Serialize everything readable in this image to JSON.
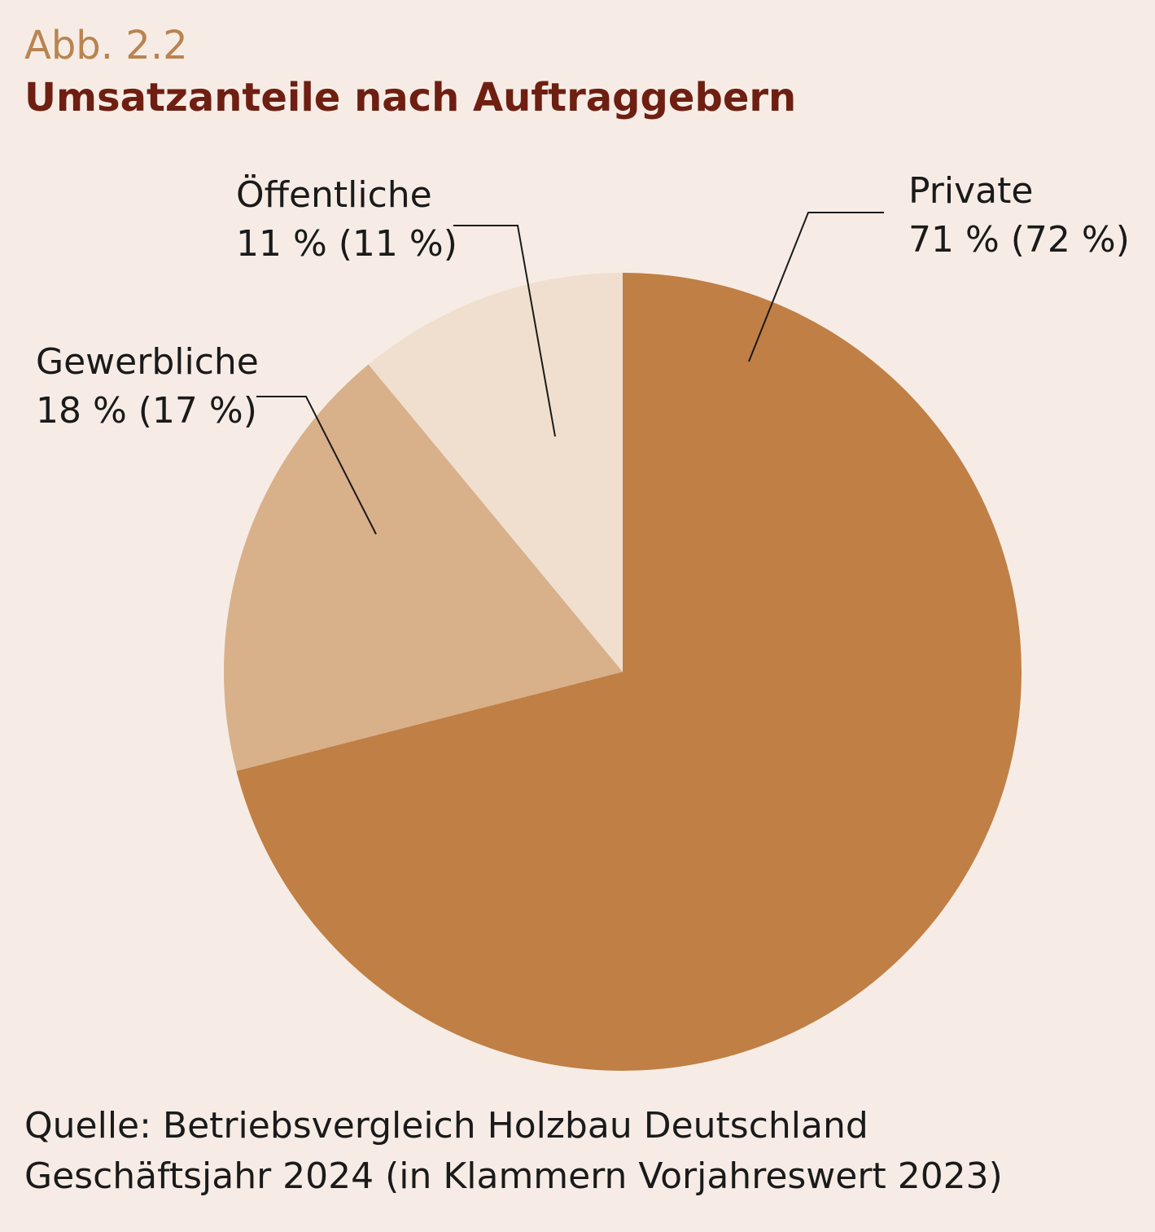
{
  "figure": {
    "number": "Abb. 2.2",
    "title": "Umsatzanteile nach Auftraggebern"
  },
  "chart_data": {
    "type": "pie",
    "title": "Umsatzanteile nach Auftraggebern",
    "slices": [
      {
        "label": "Private",
        "value": 71,
        "previous": 72,
        "value_text": "71 % (72 %)",
        "color": "#c07f44"
      },
      {
        "label": "Gewerbliche",
        "value": 18,
        "previous": 17,
        "value_text": "18 % (17 %)",
        "color": "#d8b08a"
      },
      {
        "label": "Öffentliche",
        "value": 11,
        "previous": 11,
        "value_text": "11 % (11 %)",
        "color": "#f0dfcf"
      }
    ]
  },
  "source": {
    "line1": "Quelle: Betriebsvergleich Holzbau Deutschland",
    "line2": "Geschäftsjahr 2024 (in Klammern Vorjahreswert 2023)"
  },
  "colors": {
    "background": "#f6ece5",
    "figure_number": "#b98450",
    "title": "#6e1f12"
  }
}
